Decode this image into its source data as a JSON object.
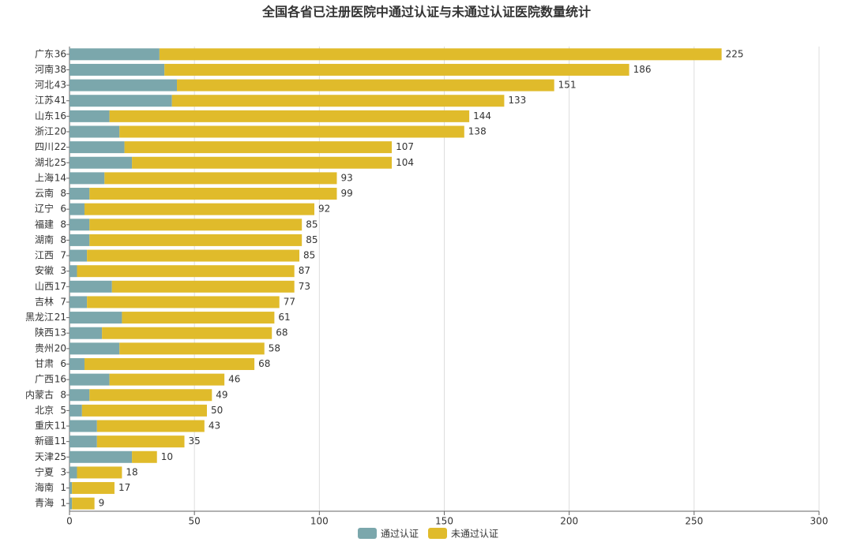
{
  "chart_data": {
    "type": "stacked-barh",
    "title": "全国各省已注册医院中通过认证与未通过认证医院数量统计",
    "categories": [
      "广东",
      "河南",
      "河北",
      "江苏",
      "山东",
      "浙江",
      "四川",
      "湖北",
      "上海",
      "云南",
      "辽宁",
      "福建",
      "湖南",
      "江西",
      "安徽",
      "山西",
      "吉林",
      "黑龙江",
      "陕西",
      "贵州",
      "甘肃",
      "广西",
      "内蒙古",
      "北京",
      "重庆",
      "新疆",
      "天津",
      "宁夏",
      "海南",
      "青海"
    ],
    "series": [
      {
        "name": "通过认证",
        "color": "#7ba7ac",
        "values": [
          36,
          38,
          43,
          41,
          16,
          20,
          22,
          25,
          14,
          8,
          6,
          8,
          8,
          7,
          3,
          17,
          7,
          21,
          13,
          20,
          6,
          16,
          8,
          5,
          11,
          11,
          25,
          3,
          1,
          1
        ]
      },
      {
        "name": "未通过认证",
        "color": "#e0bb2b",
        "values": [
          225,
          186,
          151,
          133,
          144,
          138,
          107,
          104,
          93,
          99,
          92,
          85,
          85,
          85,
          87,
          73,
          77,
          61,
          68,
          58,
          68,
          46,
          49,
          50,
          43,
          35,
          10,
          18,
          17,
          9
        ]
      }
    ],
    "xlim": [
      0,
      300
    ],
    "xticks": [
      0,
      50,
      100,
      150,
      200,
      250,
      300
    ],
    "grid": true,
    "legend": "bottom"
  }
}
